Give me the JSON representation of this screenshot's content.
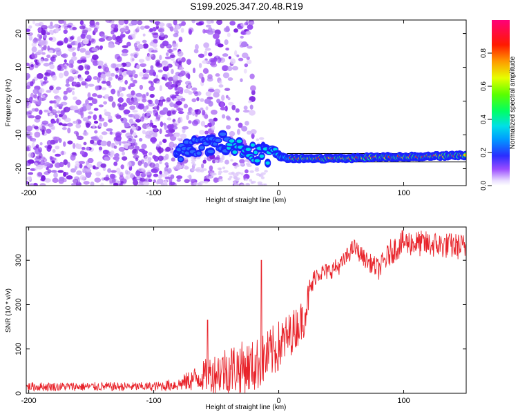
{
  "title": "S199.2025.347.20.48.R19",
  "colors": {
    "signal": "#e8232a",
    "scatter": "#7a1fe0"
  },
  "chart_data": [
    {
      "type": "heatmap",
      "xlabel": "Height of straight line (km)",
      "ylabel": "Frequency (Hz)",
      "xlim": [
        -202,
        150
      ],
      "ylim": [
        -25,
        24
      ],
      "x_ticks": [
        -200,
        -100,
        0,
        100
      ],
      "y_ticks": [
        -20,
        -10,
        0,
        10,
        20
      ],
      "colorbar": {
        "label": "Normalized spectral amplitude",
        "range": [
          0.0,
          1.0
        ],
        "ticks": [
          0.0,
          0.2,
          0.4,
          0.6,
          0.8
        ],
        "colormap": "rainbow (purple-blue-cyan-green-yellow-red-magenta)"
      },
      "ridge": {
        "description": "dominant frequency track",
        "x": [
          -80,
          -70,
          -60,
          -50,
          -40,
          -30,
          -20,
          -10,
          0,
          10,
          20,
          50,
          80,
          100,
          150
        ],
        "frequency": [
          -15,
          -14,
          -13,
          -12,
          -12.5,
          -14,
          -15,
          -16,
          -16.5,
          -17,
          -17,
          -17,
          -16.5,
          -16.5,
          -16
        ]
      },
      "reference_band": {
        "frequency": [
          -18,
          -15.5
        ],
        "x_start": 7
      }
    },
    {
      "type": "line",
      "xlabel": "Height of straight line (km)",
      "ylabel": "SNR (10 * v/v)",
      "xlim": [
        -202,
        150
      ],
      "ylim": [
        0,
        375
      ],
      "x_ticks": [
        -200,
        -100,
        0,
        100
      ],
      "y_ticks": [
        0,
        100,
        200,
        300
      ],
      "series": [
        {
          "name": "SNR",
          "trend_x": [
            -202,
            -100,
            -80,
            -60,
            -40,
            -20,
            -10,
            0,
            10,
            20,
            25,
            30,
            40,
            50,
            60,
            70,
            80,
            90,
            100,
            150
          ],
          "trend_y": [
            15,
            15,
            20,
            40,
            55,
            60,
            80,
            105,
            135,
            170,
            230,
            270,
            275,
            290,
            330,
            300,
            280,
            320,
            340,
            330
          ],
          "noise_amplitude": [
            10,
            10,
            15,
            35,
            60,
            60,
            60,
            60,
            50,
            45,
            35,
            20,
            20,
            20,
            20,
            20,
            25,
            30,
            30,
            30
          ]
        }
      ],
      "peaks": [
        {
          "x": -14,
          "y": 300
        },
        {
          "x": -57,
          "y": 165
        }
      ]
    }
  ]
}
